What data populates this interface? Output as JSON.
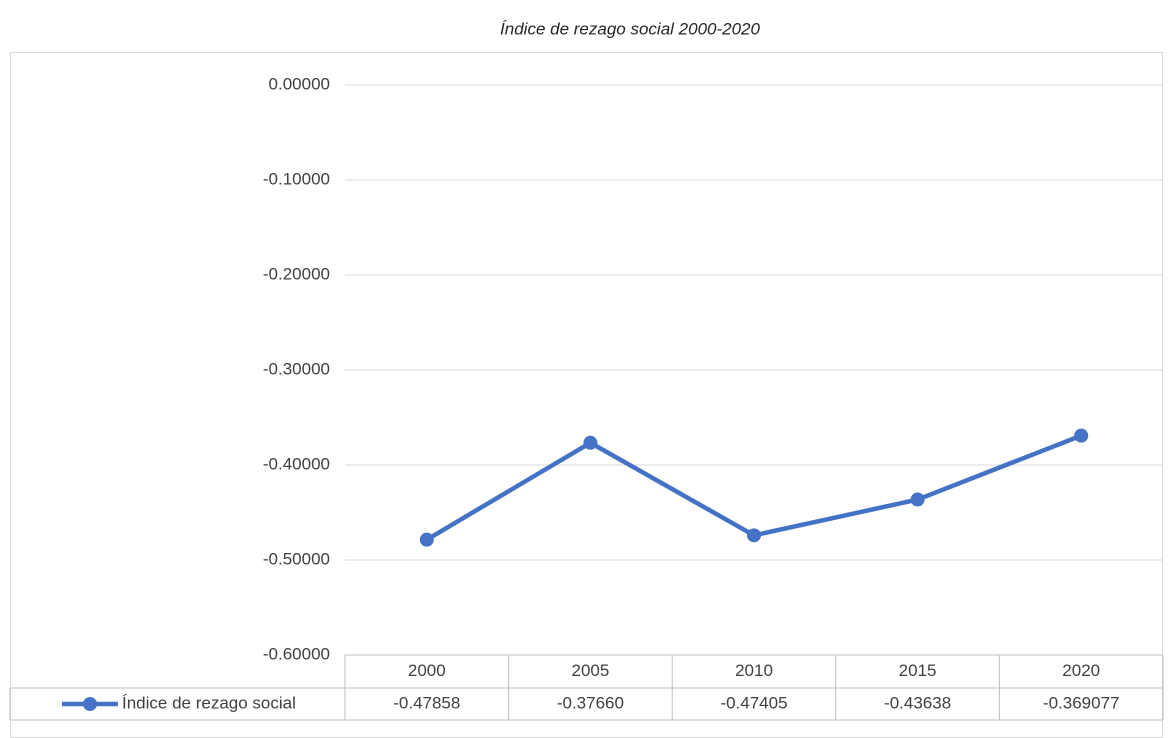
{
  "chart_data": {
    "type": "line",
    "title": "Índice de rezago social 2000-2020",
    "categories": [
      "2000",
      "2005",
      "2010",
      "2015",
      "2020"
    ],
    "series": [
      {
        "name": "Índice de rezago social",
        "color": "#4472c4",
        "values": [
          -0.47858,
          -0.3766,
          -0.47405,
          -0.43638,
          -0.369077
        ],
        "value_labels": [
          "-0.47858",
          "-0.37660",
          "-0.47405",
          "-0.43638",
          "-0.369077"
        ]
      }
    ],
    "ylim": [
      -0.6,
      0
    ],
    "yticks": [
      {
        "value": -0.6,
        "label": "-0.60000"
      },
      {
        "value": -0.5,
        "label": "-0.50000"
      },
      {
        "value": -0.4,
        "label": "-0.40000"
      },
      {
        "value": -0.3,
        "label": "-0.30000"
      },
      {
        "value": -0.2,
        "label": "-0.20000"
      },
      {
        "value": -0.1,
        "label": "-0.10000"
      },
      {
        "value": 0,
        "label": "0.00000"
      }
    ],
    "grid": true,
    "data_table": true
  }
}
